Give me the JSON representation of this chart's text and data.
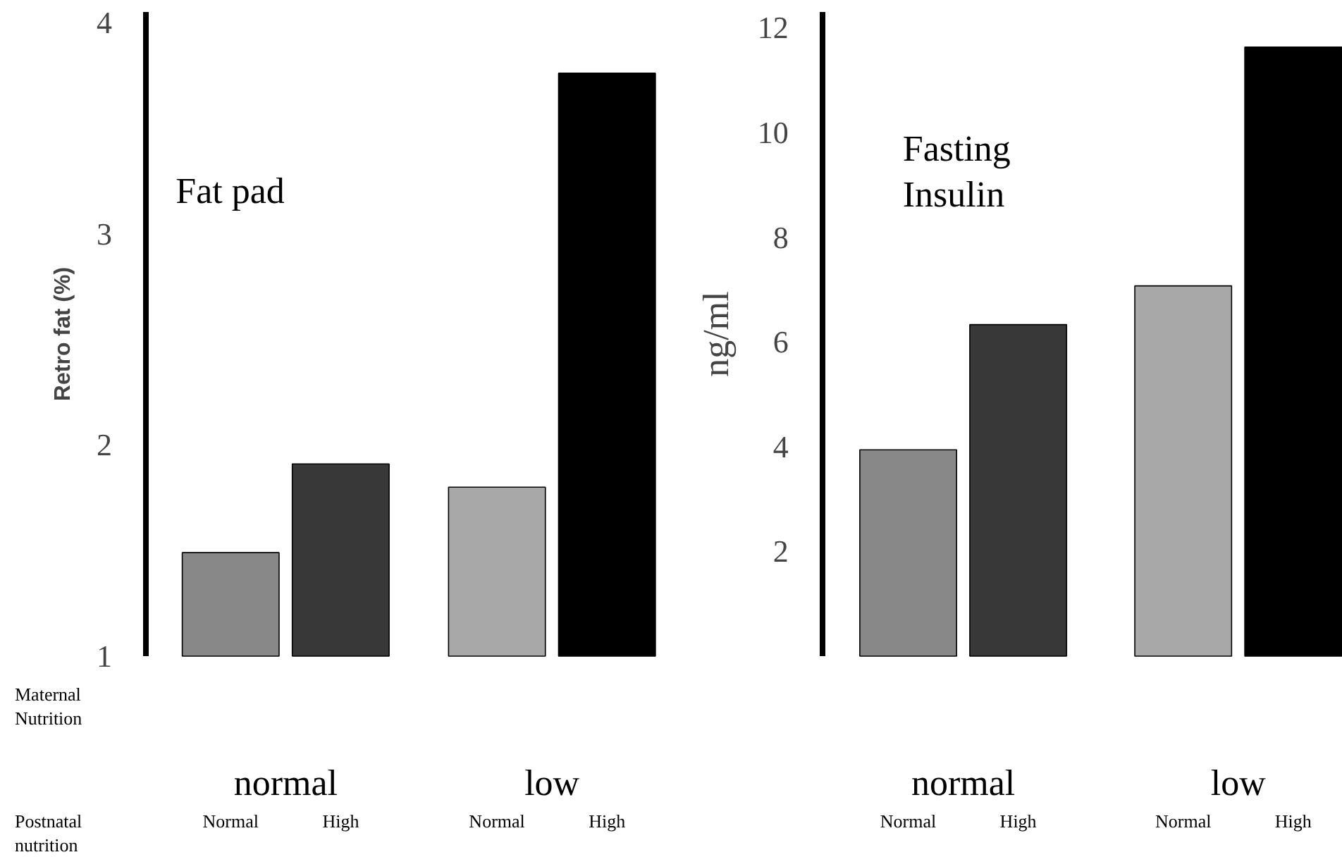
{
  "chart_data": [
    {
      "type": "bar",
      "ylabel": "Retro fat (%)",
      "categories": [
        "Normal",
        "High",
        "Normal",
        "High"
      ],
      "values": [
        1.49,
        1.91,
        1.8,
        3.76
      ],
      "colors": [
        "#888888",
        "#383838",
        "#a8a8a8",
        "#000000"
      ],
      "ylim": [
        1,
        4.05
      ],
      "yticks": [
        1,
        2,
        3,
        4
      ],
      "grid": false,
      "annotations": [
        "Fat pad",
        "Maternal\nNutrition",
        "Postnatal\nnutrition",
        "normal",
        "low"
      ]
    },
    {
      "type": "bar",
      "ylabel": "ng/ml",
      "categories": [
        "Normal",
        "High",
        "Normal",
        "High"
      ],
      "values": [
        3.94,
        6.33,
        7.07,
        11.63
      ],
      "colors": [
        "#888888",
        "#383838",
        "#a8a8a8",
        "#000000"
      ],
      "ylim": [
        0,
        12.3
      ],
      "yticks": [
        2,
        4,
        6,
        8,
        10,
        12
      ],
      "grid": false,
      "annotations": [
        "Fasting\nInsulin",
        "normal",
        "low"
      ]
    }
  ]
}
